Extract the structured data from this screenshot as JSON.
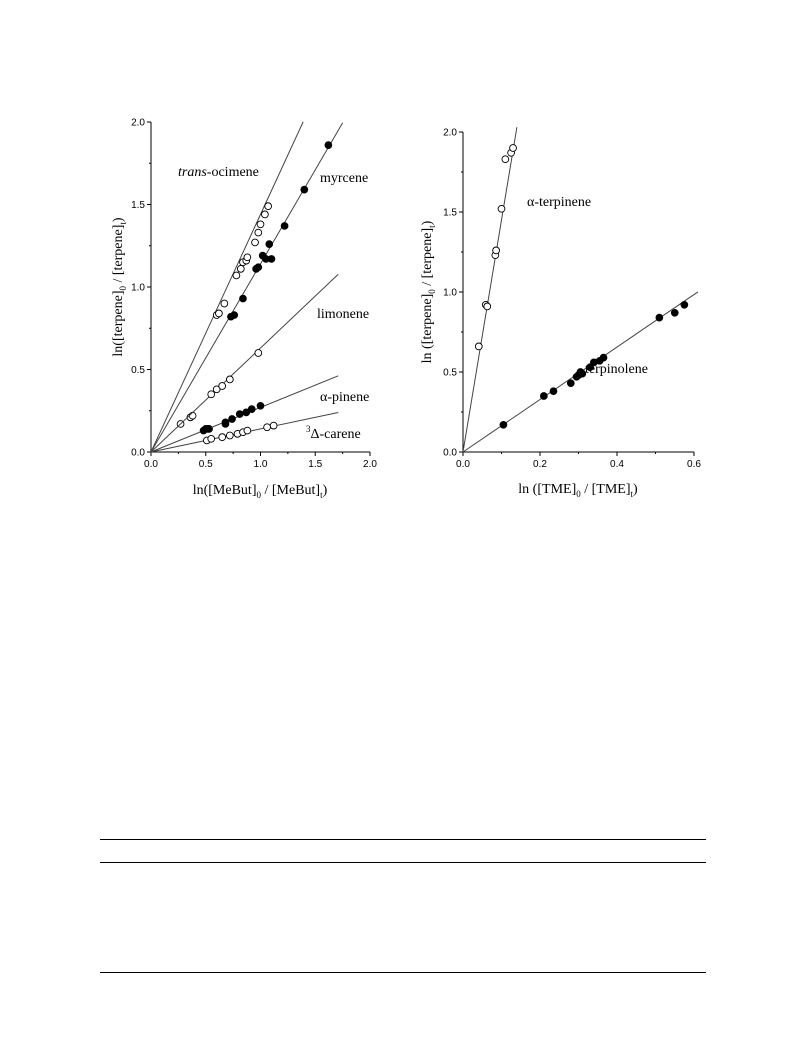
{
  "chart_data": [
    {
      "type": "scatter",
      "xlabel": "ln([MeBut]<sub>0</sub> / [MeBut]<sub>t</sub>)",
      "ylabel": "ln([terpene]<sub>0</sub> / [terpene]<sub>t</sub>)",
      "xlim": [
        0,
        2.0
      ],
      "ylim": [
        0,
        2.0
      ],
      "xticks": [
        "0.0",
        "0.5",
        "1.0",
        "1.5",
        "2.0"
      ],
      "yticks": [
        "0.0",
        "0.5",
        "1.0",
        "1.5",
        "2.0"
      ],
      "grid": false,
      "series": [
        {
          "name": "<tspan font-style=\"italic\">trans</tspan>-ocimene",
          "marker": "open",
          "slope": 1.44,
          "line_x_max": 1.39,
          "x": [
            0.27,
            0.36,
            0.38,
            0.6,
            0.62,
            0.67,
            0.78,
            0.82,
            0.84,
            0.87,
            0.88,
            0.95,
            0.98,
            1.0,
            1.04,
            1.07
          ],
          "y": [
            0.17,
            0.21,
            0.22,
            0.83,
            0.84,
            0.9,
            1.07,
            1.11,
            1.15,
            1.16,
            1.18,
            1.27,
            1.33,
            1.38,
            1.44,
            1.49
          ]
        },
        {
          "name": "myrcene",
          "marker": "filled",
          "slope": 1.14,
          "line_x_max": 1.75,
          "x": [
            0.5,
            0.53,
            0.68,
            0.73,
            0.76,
            0.84,
            0.96,
            0.98,
            1.02,
            1.05,
            1.08,
            1.1,
            1.22,
            1.4,
            1.62
          ],
          "y": [
            0.14,
            0.14,
            0.17,
            0.82,
            0.83,
            0.93,
            1.11,
            1.12,
            1.19,
            1.17,
            1.26,
            1.17,
            1.37,
            1.59,
            1.86
          ]
        },
        {
          "name": "limonene",
          "marker": "open",
          "slope": 0.63,
          "line_x_max": 1.71,
          "x": [
            0.55,
            0.6,
            0.65,
            0.72,
            0.98
          ],
          "y": [
            0.35,
            0.38,
            0.4,
            0.44,
            0.6
          ]
        },
        {
          "name": "α-pinene",
          "marker": "filled",
          "slope": 0.27,
          "line_x_max": 1.71,
          "x": [
            0.48,
            0.52,
            0.68,
            0.74,
            0.81,
            0.87,
            0.92,
            1.0
          ],
          "y": [
            0.13,
            0.14,
            0.18,
            0.2,
            0.23,
            0.24,
            0.26,
            0.28
          ]
        },
        {
          "name": "<tspan dy=\"-6\" font-size=\"9\">3</tspan><tspan dy=\"6\">Δ-carene</tspan>",
          "marker": "open",
          "slope": 0.14,
          "line_x_max": 1.71,
          "x": [
            0.51,
            0.55,
            0.65,
            0.72,
            0.79,
            0.84,
            0.88,
            1.06,
            1.12
          ],
          "y": [
            0.07,
            0.08,
            0.09,
            0.1,
            0.11,
            0.12,
            0.13,
            0.15,
            0.16
          ]
        }
      ]
    },
    {
      "type": "scatter",
      "xlabel": "ln ([TME]<sub>0</sub> / [TME]<sub>t</sub>)",
      "ylabel": "ln ([terpene]<sub>0</sub> / [terpene]<sub>t</sub>)",
      "xlim": [
        0,
        0.6
      ],
      "ylim": [
        0,
        2.0
      ],
      "xticks": [
        "0.0",
        "0.2",
        "0.4",
        "0.6"
      ],
      "yticks": [
        "0.0",
        "0.5",
        "1.0",
        "1.5",
        "2.0"
      ],
      "grid": false,
      "series": [
        {
          "name": "α-terpinene",
          "marker": "open",
          "slope": 14.5,
          "line_x_max": 0.14,
          "x": [
            0.041,
            0.059,
            0.063,
            0.084,
            0.086,
            0.1,
            0.11,
            0.125,
            0.13
          ],
          "y": [
            0.66,
            0.92,
            0.91,
            1.23,
            1.26,
            1.52,
            1.83,
            1.87,
            1.9
          ]
        },
        {
          "name": "terpinolene",
          "marker": "filled",
          "slope": 1.64,
          "line_x_max": 0.61,
          "x": [
            0.105,
            0.21,
            0.235,
            0.28,
            0.295,
            0.3,
            0.305,
            0.31,
            0.33,
            0.34,
            0.355,
            0.365,
            0.51,
            0.55,
            0.575
          ],
          "y": [
            0.17,
            0.35,
            0.38,
            0.43,
            0.47,
            0.48,
            0.5,
            0.49,
            0.53,
            0.56,
            0.57,
            0.59,
            0.84,
            0.87,
            0.92
          ]
        }
      ]
    }
  ]
}
